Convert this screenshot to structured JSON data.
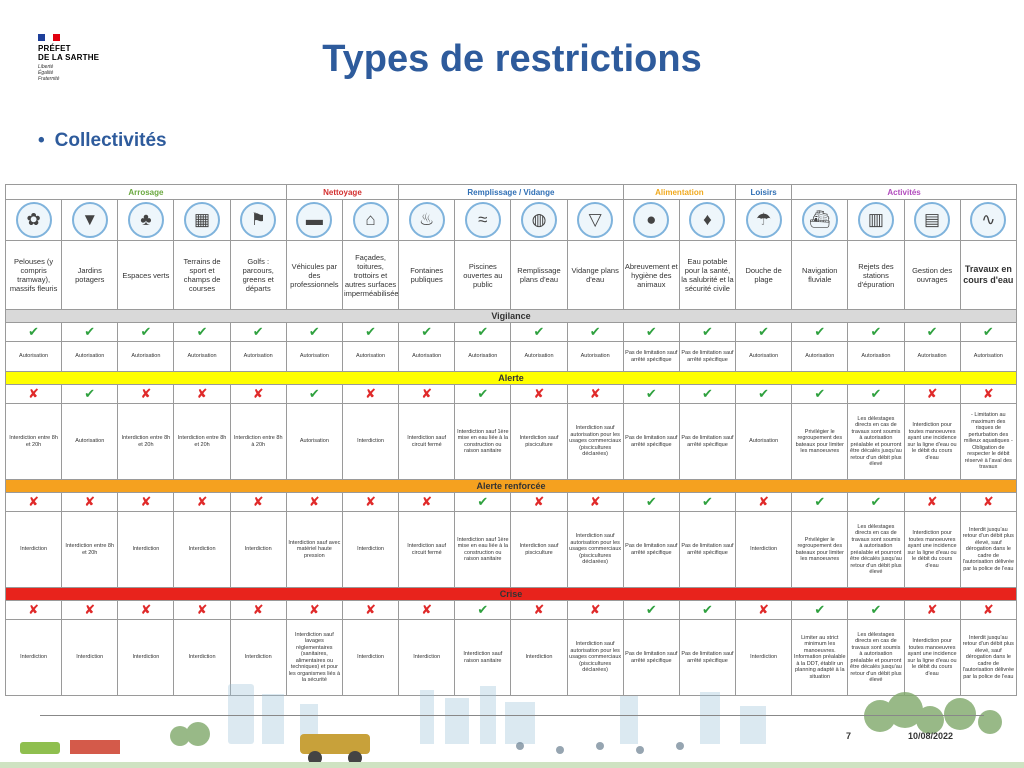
{
  "logo": {
    "line1": "PRÉFET",
    "line2": "DE LA SARTHE",
    "motto": [
      "Liberté",
      "Égalité",
      "Fraternité"
    ],
    "flag_colors": [
      "#1e3f9a",
      "#ffffff",
      "#e1000f"
    ]
  },
  "title": "Types de restrictions",
  "bullet": "Collectivités",
  "categories": [
    {
      "label": "Arrosage",
      "span": 5,
      "color": "#6aa83f"
    },
    {
      "label": "Nettoyage",
      "span": 2,
      "color": "#d32f2f"
    },
    {
      "label": "Remplissage / Vidange",
      "span": 4,
      "color": "#2f6fb5"
    },
    {
      "label": "Alimentation",
      "span": 2,
      "color": "#f0a91e"
    },
    {
      "label": "Loisirs",
      "span": 1,
      "color": "#2f6fb5"
    },
    {
      "label": "Activités",
      "span": 4,
      "color": "#b14bbd"
    }
  ],
  "columns": [
    {
      "label": "Pelouses (y compris tramway), massifs fleuris",
      "icon": "flower-icon",
      "glyph": "✿",
      "strong": false
    },
    {
      "label": "Jardins potagers",
      "icon": "carrot-icon",
      "glyph": "▼",
      "strong": false
    },
    {
      "label": "Espaces verts",
      "icon": "tree-icon",
      "glyph": "♣",
      "strong": false
    },
    {
      "label": "Terrains de sport et champs de courses",
      "icon": "sports-field-icon",
      "glyph": "▦",
      "strong": false
    },
    {
      "label": "Golfs : parcours, greens et départs",
      "icon": "golf-icon",
      "glyph": "⚑",
      "strong": false
    },
    {
      "label": "Véhicules par des professionnels",
      "icon": "car-icon",
      "glyph": "▬",
      "strong": false
    },
    {
      "label": "Façades, toitures, trottoirs et autres surfaces imperméabilisées",
      "icon": "house-icon",
      "glyph": "⌂",
      "strong": false
    },
    {
      "label": "Fontaines publiques",
      "icon": "fountain-icon",
      "glyph": "♨",
      "strong": false
    },
    {
      "label": "Piscines ouvertes au public",
      "icon": "swimmer-icon",
      "glyph": "≈",
      "strong": false
    },
    {
      "label": "Remplissage plans d'eau",
      "icon": "pond-icon",
      "glyph": "◍",
      "strong": false
    },
    {
      "label": "Vidange plans d'eau",
      "icon": "drain-icon",
      "glyph": "▽",
      "strong": false
    },
    {
      "label": "Abreuvement et hygiène des animaux",
      "icon": "dog-icon",
      "glyph": "●",
      "strong": false
    },
    {
      "label": "Eau potable pour la santé, la salubrité et la sécurité civile",
      "icon": "water-drop-icon",
      "glyph": "♦",
      "strong": false
    },
    {
      "label": "Douche de plage",
      "icon": "shower-icon",
      "glyph": "☂",
      "strong": false
    },
    {
      "label": "Navigation fluviale",
      "icon": "boat-icon",
      "glyph": "⛴",
      "strong": false
    },
    {
      "label": "Rejets des stations d'épuration",
      "icon": "treatment-plant-icon",
      "glyph": "▥",
      "strong": false
    },
    {
      "label": "Gestion des ouvrages",
      "icon": "dam-icon",
      "glyph": "▤",
      "strong": false
    },
    {
      "label": "Travaux en cours d'eau",
      "icon": "river-icon",
      "glyph": "∿",
      "strong": true
    }
  ],
  "bands": [
    {
      "label": "Vigilance",
      "color": "#d9d9d9",
      "symbols": [
        "ok",
        "ok",
        "ok",
        "ok",
        "ok",
        "ok",
        "ok",
        "ok",
        "ok",
        "ok",
        "ok",
        "ok",
        "ok",
        "ok",
        "ok",
        "ok",
        "ok",
        "ok"
      ],
      "texts": [
        "Autorisation",
        "Autorisation",
        "Autorisation",
        "Autorisation",
        "Autorisation",
        "Autorisation",
        "Autorisation",
        "Autorisation",
        "Autorisation",
        "Autorisation",
        "Autorisation",
        "Pas de limitation sauf arrêté spécifique",
        "Pas de limitation sauf arrêté spécifique",
        "Autorisation",
        "Autorisation",
        "Autorisation",
        "Autorisation",
        "Autorisation"
      ]
    },
    {
      "label": "Alerte",
      "color": "#ffff00",
      "symbols": [
        "no",
        "ok",
        "no",
        "no",
        "no",
        "ok",
        "no",
        "no",
        "ok",
        "no",
        "no",
        "ok",
        "ok",
        "ok",
        "ok",
        "ok",
        "no",
        "no"
      ],
      "texts": [
        "Interdiction entre 8h et 20h",
        "Autorisation",
        "Interdiction entre 8h et 20h",
        "Interdiction entre 8h et 20h",
        "Interdiction entre 8h à 20h",
        "Autorisation",
        "Interdiction",
        "Interdiction sauf circuit fermé",
        "Interdiction sauf 1ère mise en eau liée à la construction ou raison sanitaire",
        "Interdiction sauf pisciculture",
        "Interdiction sauf autorisation pour les usages commerciaux (piscicultures déclarées)",
        "Pas de limitation sauf arrêté spécifique",
        "Pas de limitation sauf arrêté spécifique",
        "Autorisation",
        "Privilégier le regroupement des bateaux pour limiter les manoeuvres",
        "Les délestages directs en cas de travaux sont soumis à autorisation préalable et pourront être décalés jusqu'au retour d'un débit plus élevé",
        "Interdiction pour toutes manoeuvres ayant une incidence sur la ligne d'eau ou le débit du cours d'eau",
        "- Limitation au maximum des risques de perturbation des milieux aquatiques - Obligation de respecter le débit réservé à l'aval des travaux"
      ]
    },
    {
      "label": "Alerte renforcée",
      "color": "#f5a11f",
      "symbols": [
        "no",
        "no",
        "no",
        "no",
        "no",
        "no",
        "no",
        "no",
        "ok",
        "no",
        "no",
        "ok",
        "ok",
        "no",
        "ok",
        "ok",
        "no",
        "no"
      ],
      "texts": [
        "Interdiction",
        "Interdiction entre 8h et 20h",
        "Interdiction",
        "Interdiction",
        "Interdiction",
        "Interdiction sauf avec matériel haute pression",
        "Interdiction",
        "Interdiction sauf circuit fermé",
        "Interdiction sauf 1ère mise en eau liée à la construction ou raison sanitaire",
        "Interdiction sauf pisciculture",
        "Interdiction sauf autorisation pour les usages commerciaux (piscicultures déclarées)",
        "Pas de limitation sauf arrêté spécifique",
        "Pas de limitation sauf arrêté spécifique",
        "Interdiction",
        "Privilégier le regroupement des bateaux pour limiter les manoeuvres",
        "Les délestages directs en cas de travaux sont soumis à autorisation préalable et pourront être décalés jusqu'au retour d'un débit plus élevé",
        "Interdiction pour toutes manoeuvres ayant une incidence sur la ligne d'eau ou le débit du cours d'eau",
        "Interdit jusqu'au retour d'un débit plus élevé, sauf dérogation dans le cadre de l'autorisation délivrée par la police de l'eau"
      ]
    },
    {
      "label": "Crise",
      "color": "#e8231c",
      "symbols": [
        "no",
        "no",
        "no",
        "no",
        "no",
        "no",
        "no",
        "no",
        "ok",
        "no",
        "no",
        "ok",
        "ok",
        "no",
        "ok",
        "ok",
        "no",
        "no"
      ],
      "texts": [
        "Interdiction",
        "Interdiction",
        "Interdiction",
        "Interdiction",
        "Interdiction",
        "Interdiction sauf lavages réglementaires (sanitaires, alimentaires ou techniques) et pour les organismes liés à la sécurité",
        "Interdiction",
        "Interdiction",
        "Interdiction sauf raison sanitaire",
        "Interdiction",
        "Interdiction sauf autorisation pour les usages commerciaux (piscicultures déclarées)",
        "Pas de limitation sauf arrêté spécifique",
        "Pas de limitation sauf arrêté spécifique",
        "Interdiction",
        "Limiter au strict minimum les manoeuvres. Information préalable à la DDT, établir un planning adapté à la situation",
        "Les délestages directs en cas de travaux sont soumis à autorisation préalable et pourront être décalés jusqu'au retour d'un débit plus élevé",
        "Interdiction pour toutes manoeuvres ayant une incidence sur la ligne d'eau ou le débit du cours d'eau",
        "Interdit jusqu'au retour d'un débit plus élevé, sauf dérogation dans le cadre de l'autorisation délivrée par la police de l'eau"
      ]
    }
  ],
  "footer": {
    "page": "7",
    "date": "10/08/2022"
  }
}
